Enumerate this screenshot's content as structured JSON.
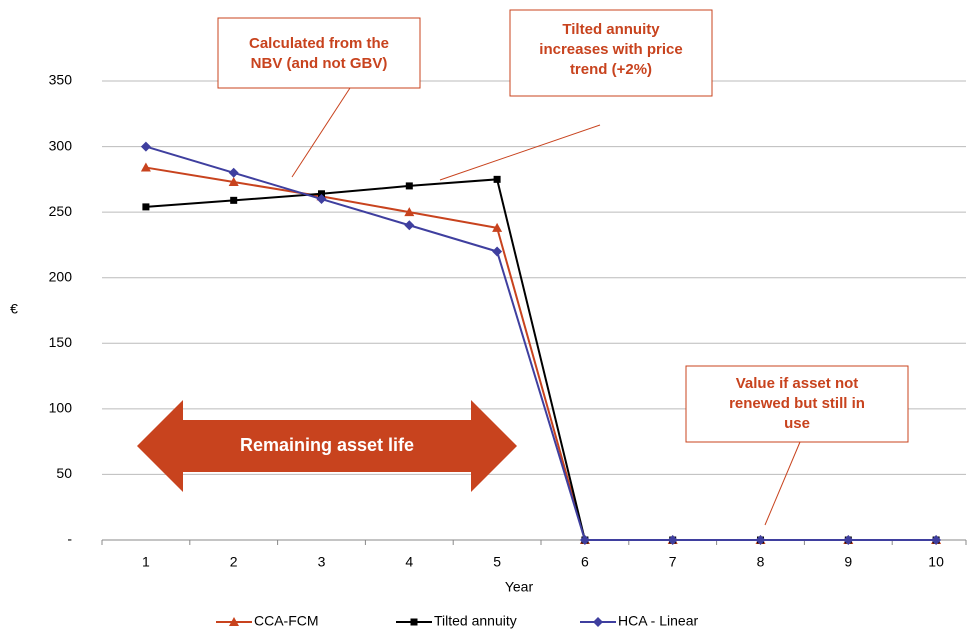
{
  "chart_data": {
    "type": "line",
    "x_label": "Year",
    "y_label": "€",
    "categories": [
      "1",
      "2",
      "3",
      "4",
      "5",
      "6",
      "7",
      "8",
      "9",
      "10"
    ],
    "series": [
      {
        "name": "CCA-FCM",
        "color": "#c8431e",
        "marker": "triangle",
        "values": [
          284,
          273,
          262,
          250,
          238,
          0,
          0,
          0,
          0,
          0
        ]
      },
      {
        "name": "Tilted annuity",
        "color": "#000000",
        "marker": "square",
        "values": [
          254,
          259,
          264,
          270,
          275,
          0,
          0,
          0,
          0,
          0
        ]
      },
      {
        "name": "HCA - Linear",
        "color": "#3f3f9f",
        "marker": "diamond",
        "values": [
          300,
          280,
          260,
          240,
          220,
          0,
          0,
          0,
          0,
          0
        ]
      }
    ],
    "ylim": [
      0,
      350
    ],
    "yticks": [
      {
        "value": 0,
        "label": "-"
      },
      50,
      100,
      150,
      200,
      250,
      300,
      350
    ],
    "grid": true,
    "legend": "bottom",
    "annotations": [
      {
        "lines": [
          "Calculated from the",
          "NBV (and not GBV)"
        ]
      },
      {
        "lines": [
          "Tilted annuity",
          "increases with price",
          "trend (+2%)"
        ]
      },
      {
        "lines": [
          "Value if asset not",
          "renewed but still in",
          "use"
        ]
      }
    ],
    "arrow_text": "Remaining asset life"
  }
}
